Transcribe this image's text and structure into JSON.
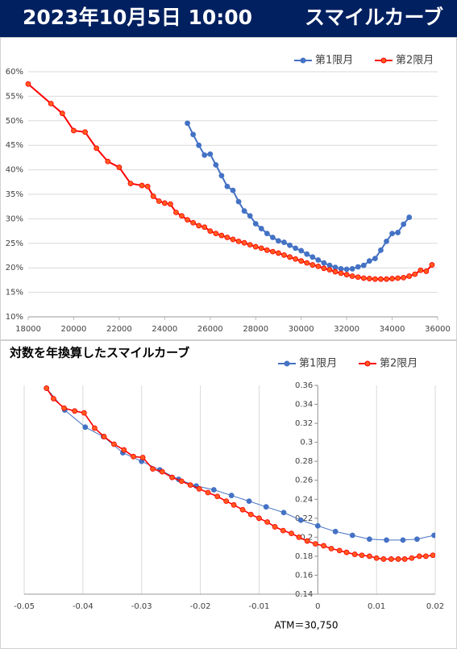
{
  "header": {
    "date": "2023年10月5日 10:00",
    "title": "スマイルカーブ"
  },
  "chart_data": [
    {
      "type": "line",
      "legend": "top-right",
      "grid": "y",
      "xlim": [
        18000,
        36000
      ],
      "xticks": [
        18000,
        20000,
        22000,
        24000,
        26000,
        28000,
        30000,
        32000,
        34000,
        36000
      ],
      "ylim": [
        10,
        60
      ],
      "yticks": [
        {
          "value": 10,
          "label": "10%"
        },
        {
          "value": 15,
          "label": "15%"
        },
        {
          "value": 20,
          "label": "20%"
        },
        {
          "value": 25,
          "label": "25%"
        },
        {
          "value": 30,
          "label": "30%"
        },
        {
          "value": 35,
          "label": "35%"
        },
        {
          "value": 40,
          "label": "40%"
        },
        {
          "value": 45,
          "label": "45%"
        },
        {
          "value": 50,
          "label": "50%"
        },
        {
          "value": 55,
          "label": "55%"
        },
        {
          "value": 60,
          "label": "60%"
        }
      ],
      "series": [
        {
          "name": "第1限月",
          "color": "#4472c4",
          "x": [
            25000,
            25250,
            25500,
            25750,
            26000,
            26250,
            26500,
            26750,
            27000,
            27250,
            27500,
            27750,
            28000,
            28250,
            28500,
            28750,
            29000,
            29250,
            29500,
            29750,
            30000,
            30250,
            30500,
            30750,
            31000,
            31250,
            31500,
            31750,
            32000,
            32250,
            32500,
            32750,
            33000,
            33250,
            33500,
            33750,
            34000,
            34250,
            34500,
            34750
          ],
          "values": [
            49.5,
            47.2,
            45,
            43,
            43.2,
            41,
            38.8,
            36.6,
            35.8,
            33.5,
            31.6,
            30.6,
            29,
            28,
            27,
            26.2,
            25.5,
            25.2,
            24.6,
            24,
            23.5,
            22.8,
            22.2,
            21.6,
            21,
            20.5,
            20.1,
            19.8,
            19.7,
            19.8,
            20.2,
            20.5,
            21.4,
            21.9,
            23.6,
            25.4,
            27,
            27.2,
            28.9,
            30.3
          ]
        },
        {
          "name": "第2限月",
          "color": "#ff0000",
          "x": [
            18000,
            19000,
            19500,
            20000,
            20500,
            21000,
            21500,
            22000,
            22500,
            23000,
            23250,
            23500,
            23750,
            24000,
            24250,
            24500,
            24750,
            25000,
            25250,
            25500,
            25750,
            26000,
            26250,
            26500,
            26750,
            27000,
            27250,
            27500,
            27750,
            28000,
            28250,
            28500,
            28750,
            29000,
            29250,
            29500,
            29750,
            30000,
            30250,
            30500,
            30750,
            31000,
            31250,
            31500,
            31750,
            32000,
            32250,
            32500,
            32750,
            33000,
            33250,
            33500,
            33750,
            34000,
            34250,
            34500,
            34750,
            35000,
            35250,
            35500,
            35750
          ],
          "values": [
            57.5,
            53.5,
            51.5,
            48,
            47.7,
            44.4,
            41.7,
            40.5,
            37.2,
            36.8,
            36.6,
            34.6,
            33.6,
            33.2,
            33,
            31.3,
            30.6,
            29.8,
            29.2,
            28.6,
            28.3,
            27.5,
            27,
            26.6,
            26.2,
            25.8,
            25.4,
            25.1,
            24.7,
            24.3,
            24,
            23.6,
            23.3,
            23,
            22.6,
            22.2,
            21.8,
            21.4,
            21,
            20.6,
            20.3,
            19.9,
            19.6,
            19.2,
            18.9,
            18.6,
            18.3,
            18.1,
            17.9,
            17.8,
            17.7,
            17.7,
            17.7,
            17.8,
            17.9,
            18,
            18.3,
            18.7,
            19.5,
            19.3,
            20.6
          ]
        }
      ]
    },
    {
      "type": "line",
      "title": "対数を年換算したスマイルカーブ",
      "legend": "top-right",
      "grid": "x",
      "annotation": "ATM＝30,750",
      "xlim": [
        -0.05,
        0.02
      ],
      "xticks": [
        -0.05,
        -0.04,
        -0.03,
        -0.02,
        -0.01,
        0,
        0.01,
        0.02
      ],
      "ylim": [
        0.14,
        0.36
      ],
      "yticks": [
        0.14,
        0.16,
        0.18,
        0.2,
        0.22,
        0.24,
        0.26,
        0.28,
        0.3,
        0.32,
        0.34,
        0.36
      ],
      "series": [
        {
          "name": "第1限月",
          "color": "#4472c4",
          "x": [
            -0.0462,
            -0.0431,
            -0.0396,
            -0.0365,
            -0.0332,
            -0.03,
            -0.0269,
            -0.0237,
            -0.0207,
            -0.0177,
            -0.0147,
            -0.0117,
            -0.0088,
            -0.0058,
            -0.0029,
            0,
            0.003,
            0.0059,
            0.0088,
            0.0117,
            0.0145,
            0.0169,
            0.0198
          ],
          "values": [
            0.357,
            0.334,
            0.316,
            0.306,
            0.289,
            0.28,
            0.271,
            0.261,
            0.254,
            0.25,
            0.244,
            0.238,
            0.232,
            0.226,
            0.218,
            0.212,
            0.206,
            0.202,
            0.198,
            0.197,
            0.197,
            0.198,
            0.202
          ]
        },
        {
          "name": "第2限月",
          "color": "#ff0000",
          "x": [
            -0.0462,
            -0.045,
            -0.0432,
            -0.0414,
            -0.0398,
            -0.038,
            -0.0364,
            -0.0347,
            -0.033,
            -0.0314,
            -0.0298,
            -0.0281,
            -0.0265,
            -0.0248,
            -0.0232,
            -0.0217,
            -0.0202,
            -0.0187,
            -0.0171,
            -0.0156,
            -0.0143,
            -0.0128,
            -0.0114,
            -0.01,
            -0.0086,
            -0.0073,
            -0.0059,
            -0.0045,
            -0.0032,
            -0.0018,
            -0.0004,
            0.001,
            0.0023,
            0.0037,
            0.0049,
            0.0063,
            0.0075,
            0.0088,
            0.01,
            0.0112,
            0.0125,
            0.0137,
            0.0148,
            0.016,
            0.0173,
            0.0184,
            0.0196
          ],
          "values": [
            0.357,
            0.346,
            0.336,
            0.333,
            0.331,
            0.315,
            0.306,
            0.298,
            0.292,
            0.285,
            0.284,
            0.272,
            0.269,
            0.263,
            0.259,
            0.255,
            0.251,
            0.247,
            0.243,
            0.238,
            0.234,
            0.229,
            0.224,
            0.22,
            0.216,
            0.211,
            0.207,
            0.204,
            0.2,
            0.196,
            0.193,
            0.191,
            0.188,
            0.186,
            0.184,
            0.182,
            0.181,
            0.18,
            0.178,
            0.177,
            0.177,
            0.177,
            0.177,
            0.178,
            0.18,
            0.18,
            0.181
          ]
        }
      ]
    }
  ]
}
